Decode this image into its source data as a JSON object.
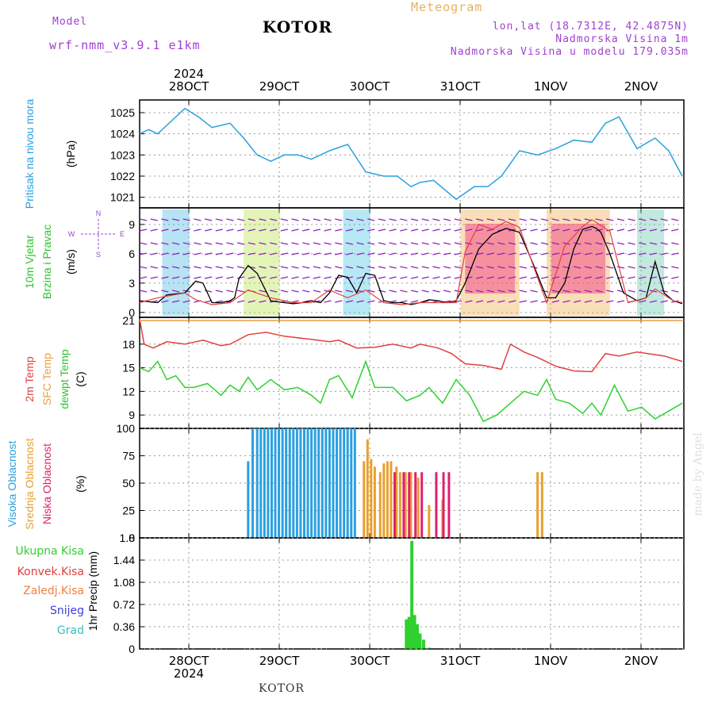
{
  "header": {
    "model_label": "Model",
    "model_name": "wrf-nmm_v3.9.1  e1km",
    "title": "KOTOR",
    "meteogram": "Meteogram",
    "lonlat": "lon,lat (18.7312E, 42.4875N)",
    "altitude": "Nadmorska Visina 1m",
    "model_altitude": "Nadmorska Visina u modelu 179.035m",
    "colors": {
      "model": "#a040d0",
      "title": "#000000",
      "meteogram": "#e8b060",
      "info": "#a040d0"
    }
  },
  "footer": {
    "station": "KOTOR",
    "watermark": "made by Angel"
  },
  "time_axis": {
    "top_labels": [
      "28OCT",
      "29OCT",
      "30OCT",
      "31OCT",
      "1NOV",
      "2NOV"
    ],
    "bottom_labels": [
      "28OCT",
      "29OCT",
      "30OCT",
      "31OCT",
      "1NOV",
      "2NOV"
    ],
    "year": "2024"
  },
  "chart_data": [
    {
      "type": "line",
      "id": "pressure",
      "ylabel": "Pritisak na nivou mora",
      "unit": "(hPa)",
      "yticks": [
        "1021",
        "1022",
        "1023",
        "1024",
        "1025"
      ],
      "ylim": [
        1020.5,
        1025.6
      ],
      "x_days": [
        0,
        0.1,
        0.2,
        0.3,
        0.5,
        0.65,
        0.8,
        0.9,
        1.0,
        1.15,
        1.3,
        1.45,
        1.6,
        1.75,
        1.9,
        2.1,
        2.3,
        2.5,
        2.7,
        2.85,
        3.0,
        3.1,
        3.25,
        3.5,
        3.7,
        3.85,
        4.0,
        4.2,
        4.4,
        4.6,
        4.8,
        5.0,
        5.15,
        5.3,
        5.5,
        5.7,
        5.85,
        6.0
      ],
      "y": [
        1024.0,
        1024.2,
        1024.0,
        1024.4,
        1025.2,
        1024.8,
        1024.3,
        1024.4,
        1024.5,
        1023.8,
        1023.0,
        1022.7,
        1023.0,
        1023.0,
        1022.8,
        1023.2,
        1023.5,
        1022.2,
        1022.0,
        1022.0,
        1021.5,
        1021.7,
        1021.8,
        1020.9,
        1021.5,
        1021.5,
        1022.0,
        1023.2,
        1023.0,
        1023.3,
        1023.7,
        1023.6,
        1024.5,
        1024.8,
        1023.3,
        1023.8,
        1023.2,
        1022.0
      ],
      "color": "#2aa0e0"
    },
    {
      "type": "line",
      "id": "wind",
      "ylabel": "10m Vjetar",
      "ylabel2": "Brzina i Pravac",
      "unit": "(m/s)",
      "yticks": [
        "0",
        "3",
        "6",
        "9"
      ],
      "ylim": [
        -0.5,
        10.7
      ],
      "compass": {
        "n": "N",
        "e": "E",
        "w": "W",
        "s": "S"
      },
      "series": [
        {
          "name": "speed",
          "color": "#000000",
          "x_days": [
            0,
            0.2,
            0.3,
            0.5,
            0.55,
            0.62,
            0.7,
            0.8,
            0.9,
            1.0,
            1.05,
            1.1,
            1.2,
            1.3,
            1.45,
            1.6,
            1.7,
            1.8,
            1.9,
            2.0,
            2.1,
            2.2,
            2.3,
            2.4,
            2.45,
            2.5,
            2.6,
            2.7,
            2.8,
            2.9,
            3.0,
            3.1,
            3.2,
            3.3,
            3.4,
            3.5,
            3.6,
            3.75,
            3.9,
            4.05,
            4.2,
            4.35,
            4.5,
            4.6,
            4.7,
            4.8,
            4.9,
            5.0,
            5.05,
            5.1,
            5.2,
            5.35,
            5.5,
            5.6,
            5.7,
            5.8,
            5.9,
            6.0
          ],
          "y": [
            1.2,
            1.0,
            1.8,
            2.0,
            2.5,
            3.2,
            3.0,
            1.0,
            1.0,
            1.2,
            1.5,
            3.5,
            4.8,
            4.0,
            1.2,
            1.0,
            0.9,
            1.0,
            1.2,
            1.0,
            2.0,
            3.8,
            3.6,
            2.0,
            3.0,
            4.0,
            3.8,
            1.2,
            1.0,
            1.0,
            0.8,
            1.0,
            1.3,
            1.2,
            1.0,
            1.2,
            3.0,
            6.5,
            8.0,
            8.6,
            8.2,
            5.0,
            1.5,
            1.5,
            3.0,
            6.5,
            8.5,
            8.8,
            8.6,
            8.2,
            6.0,
            2.0,
            1.2,
            1.5,
            5.2,
            2.0,
            1.2,
            0.9
          ]
        },
        {
          "name": "gust",
          "color": "#e04040",
          "x_days": [
            0,
            0.2,
            0.5,
            0.62,
            0.8,
            1.0,
            1.2,
            1.45,
            1.7,
            1.9,
            2.1,
            2.3,
            2.5,
            2.7,
            2.9,
            3.1,
            3.3,
            3.5,
            3.6,
            3.75,
            3.9,
            4.05,
            4.2,
            4.5,
            4.7,
            4.9,
            5.0,
            5.2,
            5.4,
            5.6,
            5.7,
            5.9,
            6.0
          ],
          "y": [
            1.0,
            1.5,
            2.0,
            1.3,
            0.8,
            1.0,
            2.3,
            1.5,
            1.0,
            1.0,
            2.3,
            1.5,
            2.3,
            1.0,
            0.8,
            1.0,
            1.0,
            1.0,
            6.2,
            9.0,
            8.5,
            9.3,
            8.7,
            1.0,
            6.8,
            8.8,
            9.5,
            8.3,
            1.0,
            1.5,
            2.4,
            1.2,
            1.0
          ]
        }
      ]
    },
    {
      "type": "line",
      "id": "temperature",
      "ylabel": "2m Temp",
      "ylabel2": "SFC Temp",
      "ylabel3": "dewpt Temp",
      "unit": "(C)",
      "yticks": [
        "9",
        "12",
        "15",
        "18",
        "21"
      ],
      "ylim": [
        7.3,
        21.4
      ],
      "series": [
        {
          "name": "2m Temp",
          "color": "#e04040",
          "x_days": [
            0,
            0.05,
            0.15,
            0.3,
            0.5,
            0.7,
            0.9,
            1.0,
            1.2,
            1.4,
            1.6,
            1.9,
            2.1,
            2.2,
            2.4,
            2.6,
            2.8,
            3.0,
            3.1,
            3.3,
            3.45,
            3.6,
            3.8,
            4.0,
            4.1,
            4.25,
            4.4,
            4.6,
            4.8,
            5.0,
            5.15,
            5.3,
            5.5,
            5.8,
            6.0
          ],
          "y": [
            21.2,
            18.0,
            17.5,
            18.3,
            18.0,
            18.5,
            17.8,
            18.0,
            19.2,
            19.5,
            19.0,
            18.6,
            18.3,
            18.5,
            17.5,
            17.6,
            18.0,
            17.5,
            18.0,
            17.5,
            16.8,
            15.5,
            15.3,
            14.8,
            18.0,
            17.0,
            16.3,
            15.2,
            14.6,
            14.5,
            16.8,
            16.5,
            17.0,
            16.5,
            15.8
          ],
          "x_fill": []
        },
        {
          "name": "SFC Temp",
          "color": "#e8a040",
          "x_days": [
            0,
            6.0
          ],
          "y": [
            21.0,
            21.0
          ]
        },
        {
          "name": "dewpt Temp",
          "color": "#30d030",
          "x_days": [
            0,
            0.1,
            0.2,
            0.3,
            0.4,
            0.5,
            0.6,
            0.75,
            0.9,
            1.0,
            1.1,
            1.2,
            1.3,
            1.45,
            1.6,
            1.75,
            1.9,
            2.0,
            2.1,
            2.2,
            2.35,
            2.5,
            2.6,
            2.8,
            2.95,
            3.1,
            3.2,
            3.35,
            3.5,
            3.65,
            3.8,
            3.95,
            4.1,
            4.25,
            4.4,
            4.5,
            4.6,
            4.75,
            4.9,
            5.0,
            5.1,
            5.25,
            5.4,
            5.55,
            5.7,
            5.85,
            6.0
          ],
          "y": [
            15.0,
            14.5,
            15.8,
            13.5,
            14.0,
            12.5,
            12.5,
            13.0,
            11.5,
            12.8,
            12.0,
            13.8,
            12.2,
            13.5,
            12.2,
            12.5,
            11.5,
            10.5,
            13.5,
            14.0,
            11.2,
            15.8,
            12.5,
            12.5,
            10.8,
            11.5,
            12.5,
            10.5,
            13.5,
            11.5,
            8.2,
            9.0,
            10.5,
            12.0,
            11.5,
            13.5,
            11.0,
            10.5,
            9.2,
            10.5,
            9.0,
            12.8,
            9.5,
            10.0,
            8.5,
            9.5,
            10.5
          ]
        }
      ]
    },
    {
      "type": "bar",
      "id": "clouds",
      "ylabel": "Visoka Oblacnost",
      "ylabel2": "Srednja Oblacnost",
      "ylabel3": "Niska Oblacnost",
      "unit": "(%)",
      "yticks": [
        "0",
        "25",
        "50",
        "75",
        "100"
      ],
      "ylim": [
        0,
        100
      ],
      "series": [
        {
          "name": "Visoka Oblacnost",
          "color": "#2aa0e0",
          "x_days": [
            1.2,
            1.25,
            1.3,
            1.34,
            1.38,
            1.42,
            1.46,
            1.5,
            1.54,
            1.58,
            1.62,
            1.66,
            1.7,
            1.74,
            1.78,
            1.82,
            1.86,
            1.9,
            1.94,
            1.98,
            2.02,
            2.06,
            2.1,
            2.14,
            2.18,
            2.22,
            2.26,
            2.3,
            2.34,
            2.38
          ],
          "values": [
            70,
            100,
            100,
            100,
            100,
            100,
            100,
            100,
            100,
            100,
            100,
            100,
            100,
            100,
            100,
            100,
            100,
            100,
            100,
            100,
            100,
            100,
            100,
            100,
            100,
            100,
            100,
            100,
            100,
            100
          ]
        },
        {
          "name": "Srednja Oblacnost",
          "color": "#e8a030",
          "x_days": [
            2.48,
            2.52,
            2.56,
            2.6,
            2.66,
            2.7,
            2.74,
            2.78,
            2.84,
            2.88,
            2.94,
            3.0,
            3.08,
            3.2,
            3.35,
            4.4,
            4.45
          ],
          "values": [
            70,
            90,
            72,
            65,
            60,
            68,
            70,
            70,
            65,
            60,
            60,
            60,
            55,
            30,
            35,
            60,
            60
          ]
        },
        {
          "name": "Niska Oblacnost",
          "color": "#e02070",
          "x_days": [
            2.82,
            2.92,
            2.98,
            3.05,
            3.12,
            3.28,
            3.36,
            3.42
          ],
          "values": [
            60,
            60,
            60,
            60,
            60,
            60,
            60,
            60
          ]
        }
      ]
    },
    {
      "type": "bar",
      "id": "precip",
      "ylabel": "1hr Precip",
      "unit": "(mm)",
      "yticks": [
        "0",
        "0.36",
        "0.72",
        "1.08",
        "1.44",
        "1.8"
      ],
      "ylim": [
        0,
        1.8
      ],
      "legend": [
        {
          "label": "Ukupna  Kisa",
          "color": "#30d030"
        },
        {
          "label": "Konvek.Kisa",
          "color": "#e04040"
        },
        {
          "label": "Zaledj.Kisa",
          "color": "#f08040"
        },
        {
          "label": "Snijeg",
          "color": "#4040e0"
        },
        {
          "label": "Grad",
          "color": "#30c0c0"
        }
      ],
      "series": [
        {
          "name": "Ukupna  Kisa",
          "color": "#30d030",
          "x_days": [
            2.95,
            2.98,
            3.01,
            3.04,
            3.07,
            3.1,
            3.14,
            3.2
          ],
          "values": [
            0.48,
            0.52,
            1.75,
            0.55,
            0.4,
            0.25,
            0.15,
            0.02
          ]
        }
      ]
    }
  ]
}
